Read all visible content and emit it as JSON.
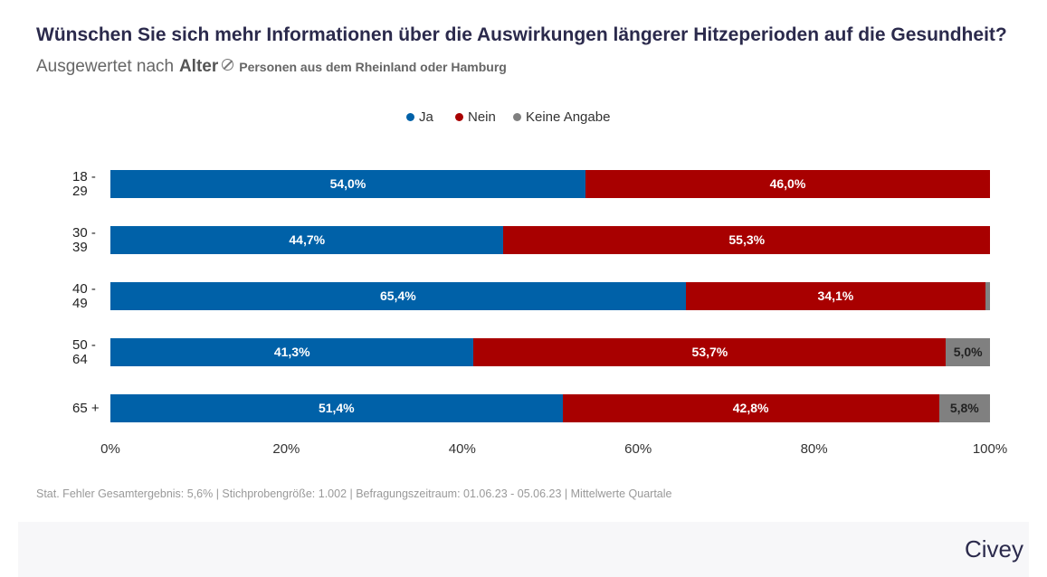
{
  "chart_data": {
    "type": "stacked_bar_horizontal",
    "title": "Wünschen Sie sich mehr Informationen über die Auswirkungen längerer Hitzeperioden auf die Gesundheit?",
    "subtitle_prefix": "Ausgewertet nach",
    "subtitle_dimension": "Alter",
    "subtitle_population": "Personen aus dem Rheinland oder Hamburg",
    "categories": [
      "18 -\n29",
      "30 -\n39",
      "40 -\n49",
      "50 -\n64",
      "65 +"
    ],
    "series": [
      {
        "name": "Ja",
        "color": "#0061a8",
        "values": [
          54.0,
          44.7,
          65.4,
          41.3,
          51.4
        ],
        "value_labels": [
          "54,0%",
          "44,7%",
          "65,4%",
          "41,3%",
          "51,4%"
        ]
      },
      {
        "name": "Nein",
        "color": "#a80000",
        "values": [
          46.0,
          55.3,
          34.1,
          53.7,
          42.8
        ],
        "value_labels": [
          "46,0%",
          "55,3%",
          "34,1%",
          "53,7%",
          "42,8%"
        ]
      },
      {
        "name": "Keine Angabe",
        "color": "#808080",
        "values": [
          0,
          0,
          0.5,
          5.0,
          5.8
        ],
        "value_labels": [
          null,
          null,
          null,
          "5,0%",
          "5,8%"
        ]
      }
    ],
    "xlim": [
      0,
      100
    ],
    "xticks": [
      {
        "value": 0,
        "label": "0%"
      },
      {
        "value": 20,
        "label": "20%"
      },
      {
        "value": 40,
        "label": "40%"
      },
      {
        "value": 60,
        "label": "60%"
      },
      {
        "value": 80,
        "label": "80%"
      },
      {
        "value": 100,
        "label": "100%"
      }
    ],
    "grid": false,
    "legend": "top",
    "note": "Stat. Fehler Gesamtergebnis: 5,6% | Stichprobengröße: 1.002 | Befragungszeitraum: 01.06.23 - 05.06.23 | Mittelwerte Quartale",
    "brand": "Civey"
  }
}
